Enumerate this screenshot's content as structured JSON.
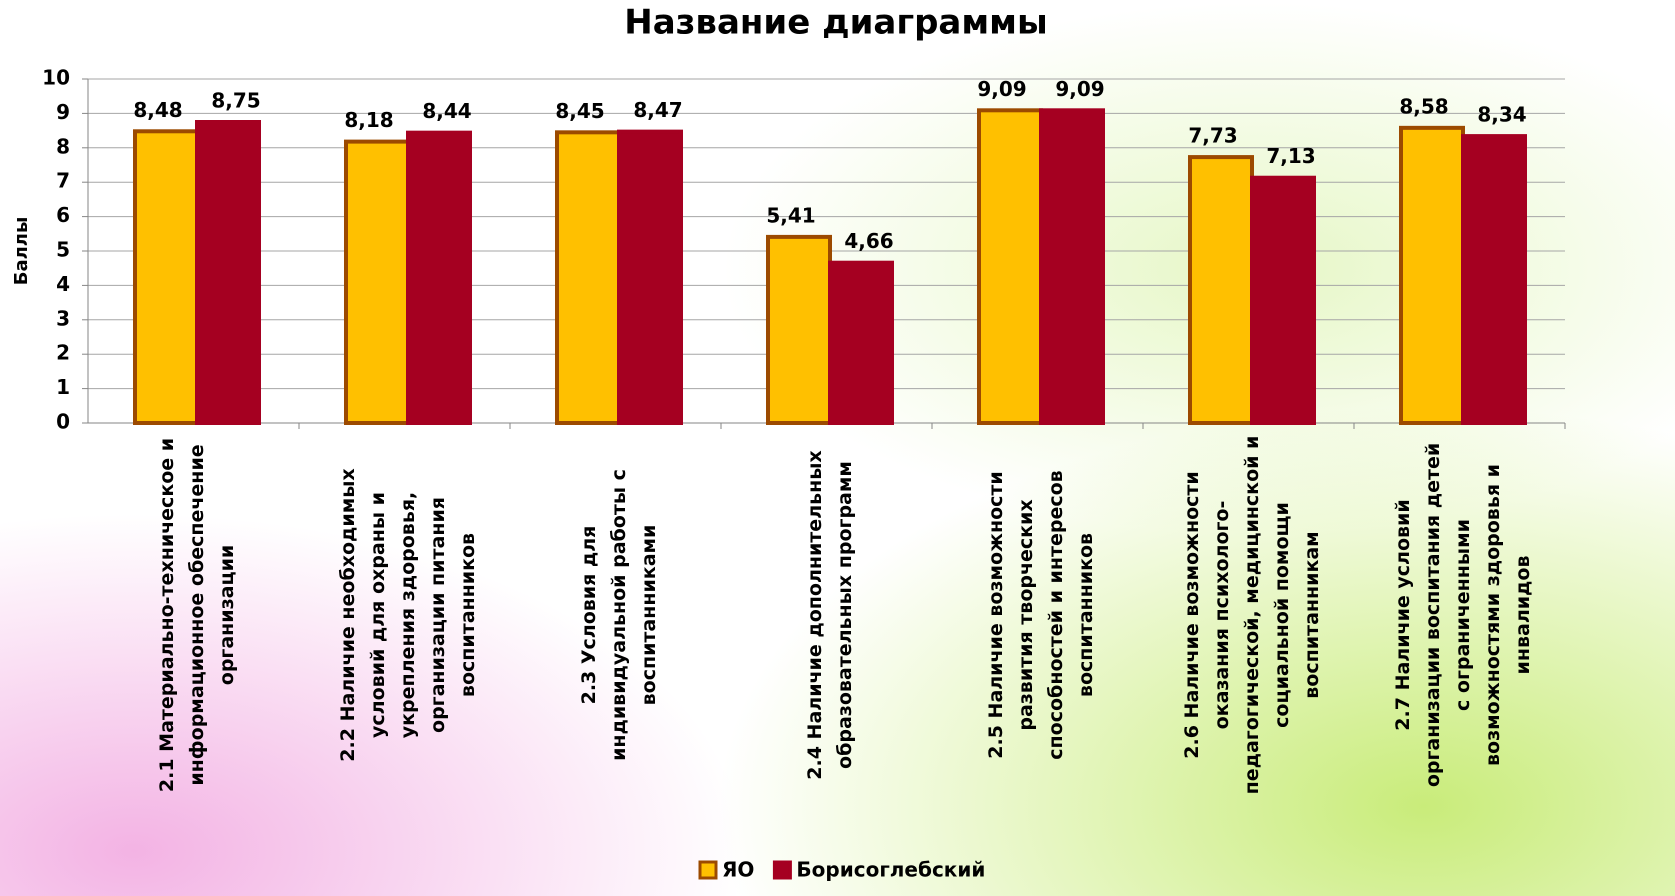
{
  "chart_data": {
    "type": "bar",
    "title": "Название диаграммы",
    "y_label": "Баллы",
    "categories": [
      "2.1 Материально-техническое и информационное обеспечение организации",
      "2.2 Наличие необходимых условий для охраны и укрепления здоровья, организации питания воспитанников",
      "2.3 Условия для индивидуальной работы с воспитанниками",
      "2.4 Наличие дополнительных образовательных программ",
      "2.5 Наличие возможности развития творческих способностей и интересов воспитанников",
      "2.6 Наличие возможности оказания психолого-педагогической, медицинской и социальной помощи воспитанникам",
      "2.7 Наличие условий организации воспитания детей с ограниченными возможностями здоровья и инвалидов"
    ],
    "series": [
      {
        "name": "ЯО",
        "color": "#ffc000",
        "values": [
          8.48,
          8.18,
          8.45,
          5.41,
          9.09,
          7.73,
          8.58
        ],
        "value_labels": [
          "8,48",
          "8,18",
          "8,45",
          "5,41",
          "9,09",
          "7,73",
          "8,58"
        ]
      },
      {
        "name": "Борисоглебский",
        "color": "#a50021",
        "values": [
          8.75,
          8.44,
          8.47,
          4.66,
          9.09,
          7.13,
          8.34
        ],
        "value_labels": [
          "8,75",
          "8,44",
          "8,47",
          "4,66",
          "9,09",
          "7,13",
          "8,34"
        ]
      }
    ],
    "ylim": [
      0,
      10
    ],
    "yticks": [
      0,
      1,
      2,
      3,
      4,
      5,
      6,
      7,
      8,
      9,
      10
    ],
    "grid": true
  }
}
